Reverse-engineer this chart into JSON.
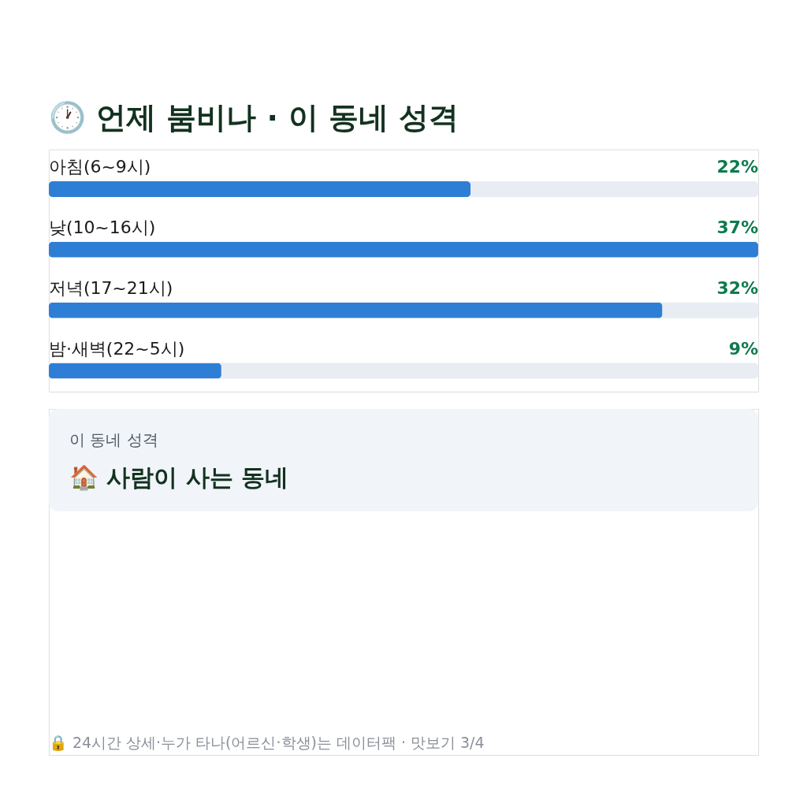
{
  "chart_data": {
    "type": "bar",
    "orientation": "horizontal",
    "title": "🕐 언제 붐비나 · 이 동네 성격",
    "categories": [
      "아침(6~9시)",
      "낮(10~16시)",
      "저녁(17~21시)",
      "밤·새벽(22~5시)"
    ],
    "values": [
      22,
      37,
      32,
      9
    ],
    "value_labels": [
      "22%",
      "37%",
      "32%",
      "9%"
    ],
    "color": "#2f7ed6",
    "grid": false,
    "annotations": [
      "이 동네 성격",
      "🏠 사람이 사는 동네",
      "🔒 24시간 상세·누가 타나(어르신·학생)는 데이터팩 · 맛보기 3/4"
    ]
  }
}
